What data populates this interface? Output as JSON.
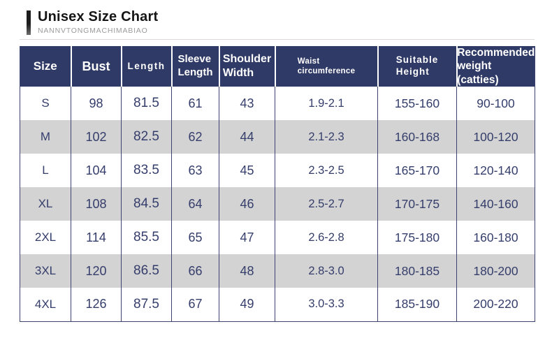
{
  "header": {
    "title": "Unisex Size Chart",
    "subtitle": "NANNVTONGMACHIMABIAO"
  },
  "colors": {
    "header_bg": "#2f3a66",
    "alt_row_bg": "#d3d3d3",
    "body_text": "#353d6b",
    "border": "#3c4370"
  },
  "header_display": [
    {
      "line1": "Size",
      "line2": ""
    },
    {
      "line1": "Bust",
      "line2": ""
    },
    {
      "line1": "Length",
      "line2": ""
    },
    {
      "line1": "Sleeve",
      "line2": "Length"
    },
    {
      "line1": "Shoulder",
      "line2": "Width"
    },
    {
      "line1": "Waist",
      "line2": "circumference"
    },
    {
      "line1": "Suitable",
      "line2": "Height"
    },
    {
      "line1": "Recommended",
      "line2": "weight (catties)"
    }
  ],
  "chart_data": {
    "type": "table",
    "title": "Unisex Size Chart",
    "columns": [
      "Size",
      "Bust",
      "Length",
      "Sleeve Length",
      "Shoulder Width",
      "Waist circumference",
      "Suitable Height",
      "Recommended weight (catties)"
    ],
    "rows": [
      [
        "S",
        "98",
        "81.5",
        "61",
        "43",
        "1.9-2.1",
        "155-160",
        "90-100"
      ],
      [
        "M",
        "102",
        "82.5",
        "62",
        "44",
        "2.1-2.3",
        "160-168",
        "100-120"
      ],
      [
        "L",
        "104",
        "83.5",
        "63",
        "45",
        "2.3-2.5",
        "165-170",
        "120-140"
      ],
      [
        "XL",
        "108",
        "84.5",
        "64",
        "46",
        "2.5-2.7",
        "170-175",
        "140-160"
      ],
      [
        "2XL",
        "114",
        "85.5",
        "65",
        "47",
        "2.6-2.8",
        "175-180",
        "160-180"
      ],
      [
        "3XL",
        "120",
        "86.5",
        "66",
        "48",
        "2.8-3.0",
        "180-185",
        "180-200"
      ],
      [
        "4XL",
        "126",
        "87.5",
        "67",
        "49",
        "3.0-3.3",
        "185-190",
        "200-220"
      ]
    ]
  }
}
